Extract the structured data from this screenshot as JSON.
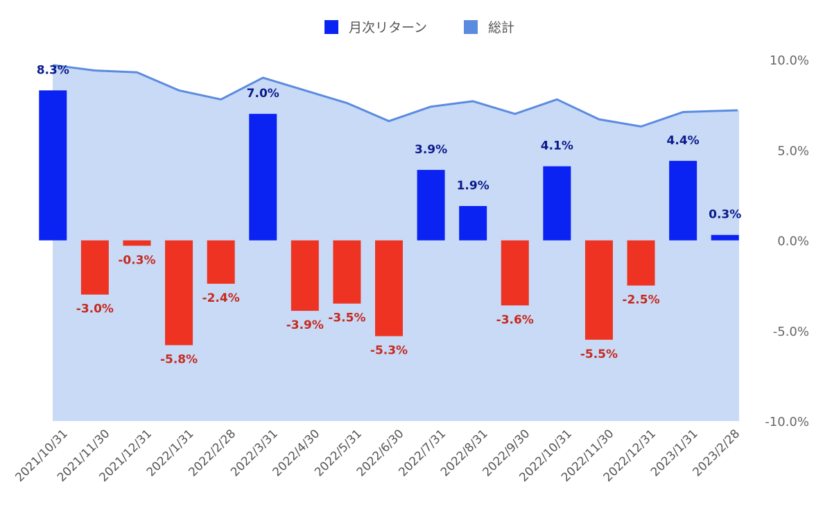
{
  "chart_data": {
    "type": "bar",
    "categories": [
      "2021/10/31",
      "2021/11/30",
      "2021/12/31",
      "2022/1/31",
      "2022/2/28",
      "2022/3/31",
      "2022/4/30",
      "2022/5/31",
      "2022/6/30",
      "2022/7/31",
      "2022/8/31",
      "2022/9/30",
      "2022/10/31",
      "2022/11/30",
      "2022/12/31",
      "2023/1/31",
      "2023/2/28"
    ],
    "series": [
      {
        "name": "月次リターン",
        "type": "bar",
        "values": [
          8.3,
          -3.0,
          -0.3,
          -5.8,
          -2.4,
          7.0,
          -3.9,
          -3.5,
          -5.3,
          3.9,
          1.9,
          -3.6,
          4.1,
          -5.5,
          -2.5,
          4.4,
          0.3
        ],
        "labels": [
          "8.3%",
          "-3.0%",
          "-0.3%",
          "-5.8%",
          "-2.4%",
          "7.0%",
          "-3.9%",
          "-3.5%",
          "-5.3%",
          "3.9%",
          "1.9%",
          "-3.6%",
          "4.1%",
          "-5.5%",
          "-2.5%",
          "4.4%",
          "0.3%"
        ],
        "color_positive": "#0a22f2",
        "color_negative": "#ee3322",
        "label_color_positive": "#0a1a8a",
        "label_color_negative": "#c52a1e"
      },
      {
        "name": "総計",
        "type": "area",
        "values": [
          9.7,
          9.4,
          9.3,
          8.3,
          7.8,
          9.0,
          8.3,
          7.6,
          6.6,
          7.4,
          7.7,
          7.0,
          7.8,
          6.7,
          6.3,
          7.1,
          7.2
        ],
        "line_color": "#5b8bdf",
        "fill_color": "#c9daf7"
      }
    ],
    "y_axis": {
      "min": -10.0,
      "max": 10.0,
      "ticks": [
        10.0,
        5.0,
        0.0,
        -5.0,
        -10.0
      ],
      "tick_labels": [
        "10.0%",
        "5.0%",
        "0.0%",
        "-5.0%",
        "-10.0%"
      ],
      "position": "right"
    },
    "legend": {
      "position": "top",
      "items": [
        {
          "label": "月次リターン",
          "color": "#0a22f2"
        },
        {
          "label": "総計",
          "color": "#5b8bdf"
        }
      ]
    },
    "grid": false
  }
}
